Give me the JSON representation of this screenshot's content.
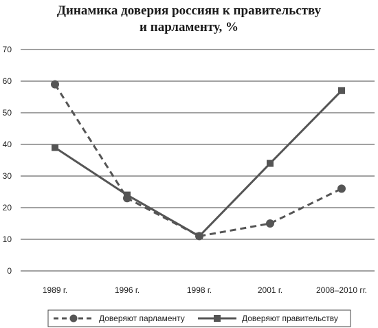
{
  "chart_data": {
    "type": "line",
    "title_lines": [
      "Динамика доверия россиян к правительству",
      "и парламенту, %"
    ],
    "categories": [
      "1989 г.",
      "1996 г.",
      "1998 г.",
      "2001 г.",
      "2008–2010 гг."
    ],
    "y_ticks": [
      0,
      10,
      20,
      30,
      40,
      50,
      60,
      70
    ],
    "ylim": [
      0,
      70
    ],
    "grid": true,
    "legend_position": "bottom",
    "series": [
      {
        "name": "Доверяют парламенту",
        "values": [
          59,
          23,
          11,
          15,
          26
        ],
        "style": "dashed",
        "marker": "circle",
        "color": "#555555"
      },
      {
        "name": "Доверяют правительству",
        "values": [
          39,
          24,
          11,
          34,
          57
        ],
        "style": "solid",
        "marker": "square",
        "color": "#555555"
      }
    ]
  }
}
